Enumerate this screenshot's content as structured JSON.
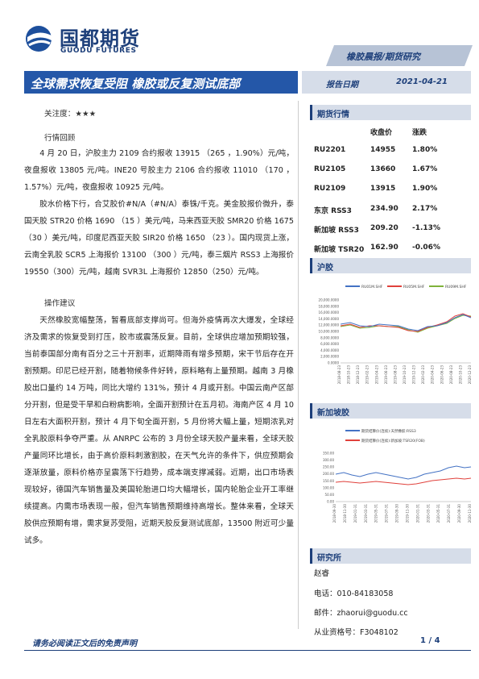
{
  "header": {
    "logo_cn": "国都期货",
    "logo_en": "GUODU FUTURES",
    "banner": "橡胶晨报/期货研究",
    "title": "全球需求恢复受阻 橡胶或反复测试底部",
    "date_label": "报告日期",
    "date": "2021-04-21"
  },
  "body": {
    "attention": "关注度：★★★",
    "review_heading": "行情回顾",
    "review": [
      "4 月 20 日，沪胶主力 2109 合约报收 13915 （265 ，1.90%）元/吨，夜盘报收 13805 元/吨。INE20 号胶主力 2106 合约报收 11010 （170 ，1.57%）元/吨，夜盘报收 10925 元/吨。",
      "胶水价格下行，合艾胶价#N/A（#N/A）泰铢/千克。美金胶报价微升，泰国天胶 STR20 价格 1690 （15 ）美元/吨，马来西亚天胶 SMR20 价格 1675 （30 ）美元/吨，印度尼西亚天胶 SIR20 价格 1650 （23 ）。国内现货上涨，云南全乳胶 SCR5 上海报价 13100 （300 ）元/吨，泰三烟片 RSS3 上海报价 19550（300）元/吨，越南 SVR3L 上海报价 12850（250）元/吨。"
    ],
    "advice_heading": "操作建议",
    "advice": [
      "天然橡胶宽幅整荡，暂看底部支撑尚可。但海外疫情再次大爆发，全球经济及需求的恢复受到打压，胶市或震荡反复。目前，全球供应增加预期较强，当前泰国部分南有百分之三十开割率，近期降雨有增多预期，宋干节后存在开割预期。印尼已经开割，随着物候条件好转，原料略有上量预期。越南 3 月橡胶出口量约 14 万吨，同比大增约 131%，预计 4 月或开割。中国云南产区部分开割，但是受干旱和白粉病影响，全面开割预计在五月初。海南产区 4 月 10 日左右大面积开割，预计 4 月下旬全面开割，5 月份将大幅上量，短期浓乳对全乳胶原料争夺严重。从 ANRPC 公布的 3 月份全球天胶产量来看，全球天胶产量同环比增长，由于高价原料刺激割胶，在天气允许的条件下，供应预期会逐渐放量，原料价格亦呈震荡下行趋势，成本端支撑减弱。近期，出口市场表现较好，德国汽车销售量及美国轮胎进口均大幅增长，国内轮胎企业开工率继续提高。内需市场表现一般，但汽车销售预期维持高增长。整体来看，全球天胶供应预期有增，需求复苏受阻，近期天胶反复测试底部，13500 附近可少量试多。"
    ]
  },
  "sidebar": {
    "market_heading": "期货行情",
    "columns": [
      "收盘价",
      "涨跌"
    ],
    "rows": [
      [
        "RU2201",
        "14955",
        "1.80%"
      ],
      [
        "RU2105",
        "13660",
        "1.67%"
      ],
      [
        "RU2109",
        "13915",
        "1.90%"
      ],
      [
        "东京 RSS3",
        "234.90",
        "2.17%"
      ],
      [
        "新加坡 RSS3",
        "209.20",
        "-1.13%"
      ],
      [
        "新加坡 TSR20",
        "162.90",
        "-0.06%"
      ]
    ],
    "charts": [
      {
        "heading": "沪胶",
        "legend": [
          "RU01M.SHF",
          "RU05M.SHF",
          "RU09M.SHF"
        ],
        "yticks": [
          "20,000.0000",
          "18,000.0000",
          "16,000.0000",
          "14,000.0000",
          "12,000.0000",
          "10,000.0000",
          "8,000.0000",
          "6,000.0000",
          "4,000.0000",
          "2,000.0000",
          "0.0000"
        ],
        "xticks": [
          "2018-08-23",
          "2018-10-23",
          "2018-12-23",
          "2019-02-23",
          "2019-04-23",
          "2019-06-23",
          "2019-08-23",
          "2019-10-23",
          "2019-12-23",
          "2020-02-23",
          "2020-04-23",
          "2020-06-23",
          "2020-08-23",
          "2020-10-23",
          "2020-12-23"
        ]
      },
      {
        "heading": "新加坡胶",
        "legend": [
          "期货结算价(连续):天然橡胶:RSS3",
          "期货结算价(连续):新加坡:TSR20(FOB)"
        ],
        "yticks": [
          "350.00",
          "300.00",
          "250.00",
          "200.00",
          "150.00",
          "100.00",
          "50.00",
          "0.00"
        ],
        "xticks": [
          "2018-09-30",
          "2018-11-30",
          "2019-01-31",
          "2019-03-31",
          "2019-05-31",
          "2019-07-31",
          "2019-09-30",
          "2019-11-30",
          "2020-01-31",
          "2020-03-31",
          "2020-05-31",
          "2020-07-31",
          "2020-09-30",
          "2020-11-30"
        ]
      }
    ],
    "research": {
      "heading": "研究所",
      "name": "赵睿",
      "phone": "电话：010-84183058",
      "email": "邮件：zhaorui@guodu.cc",
      "license": "从业资格号：F3048102"
    }
  },
  "footer": {
    "disclaimer": "请务必阅读正文后的免责声明",
    "page": "1 / 4"
  }
}
